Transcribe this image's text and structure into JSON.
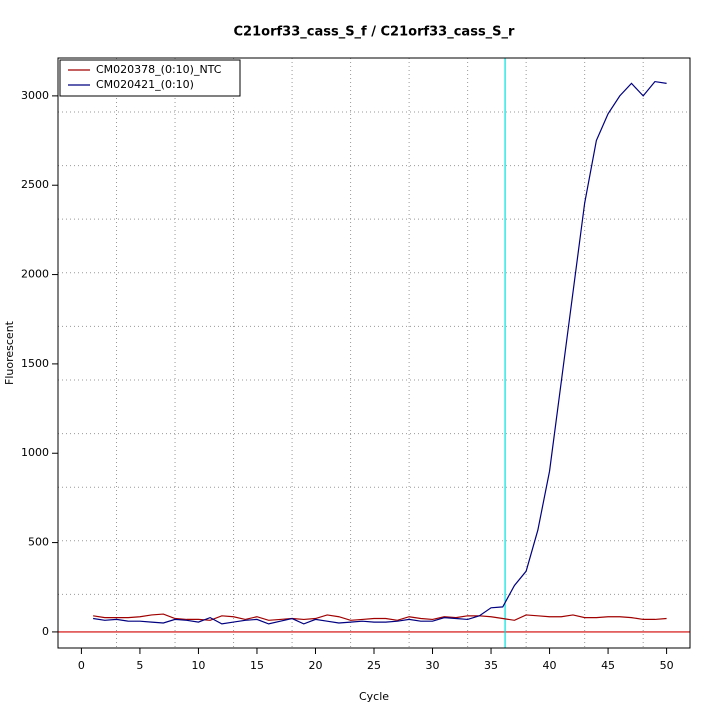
{
  "chart_data": {
    "type": "line",
    "title": "C21orf33_cass_S_f / C21orf33_cass_S_r",
    "xlabel": "Cycle",
    "ylabel": "Fluorescent",
    "x": [
      1,
      2,
      3,
      4,
      5,
      6,
      7,
      8,
      9,
      10,
      11,
      12,
      13,
      14,
      15,
      16,
      17,
      18,
      19,
      20,
      21,
      22,
      23,
      24,
      25,
      26,
      27,
      28,
      29,
      30,
      31,
      32,
      33,
      34,
      35,
      36,
      37,
      38,
      39,
      40,
      41,
      42,
      43,
      44,
      45,
      46,
      47,
      48,
      49,
      50
    ],
    "series": [
      {
        "name": "CM020378_(0:10)_NTC",
        "color": "#a00000",
        "values": [
          90,
          80,
          80,
          80,
          85,
          95,
          100,
          75,
          70,
          70,
          65,
          90,
          85,
          70,
          85,
          65,
          70,
          75,
          70,
          75,
          95,
          85,
          65,
          70,
          75,
          75,
          65,
          85,
          75,
          70,
          85,
          80,
          90,
          90,
          85,
          75,
          65,
          95,
          90,
          85,
          85,
          95,
          80,
          80,
          85,
          85,
          80,
          70,
          70,
          75
        ]
      },
      {
        "name": "CM020421_(0:10)",
        "color": "#000080",
        "values": [
          75,
          65,
          70,
          60,
          60,
          55,
          50,
          70,
          65,
          55,
          80,
          45,
          55,
          65,
          70,
          45,
          60,
          75,
          45,
          70,
          60,
          50,
          55,
          60,
          55,
          55,
          60,
          70,
          60,
          60,
          80,
          75,
          70,
          90,
          135,
          140,
          260,
          340,
          570,
          900,
          1400,
          1900,
          2400,
          2750,
          2900,
          3000,
          3070,
          3000,
          3080,
          3070
        ]
      }
    ],
    "xlim": [
      -2,
      52
    ],
    "ylim": [
      -90,
      3212
    ],
    "xticks": [
      0,
      5,
      10,
      15,
      20,
      25,
      30,
      35,
      40,
      45,
      50
    ],
    "yticks": [
      0,
      500,
      1000,
      1500,
      2000,
      2500,
      3000
    ],
    "xgrid": [
      3,
      8,
      13,
      18,
      23,
      28,
      33,
      38,
      43,
      48
    ],
    "ygrid": [
      210,
      510,
      810,
      1110,
      1410,
      1710,
      2010,
      2310,
      2610,
      2910
    ],
    "vline": 36.2,
    "vline_color": "#00e0e0",
    "hline": 0,
    "hline_color": "#d00000",
    "legend": "top-left"
  }
}
